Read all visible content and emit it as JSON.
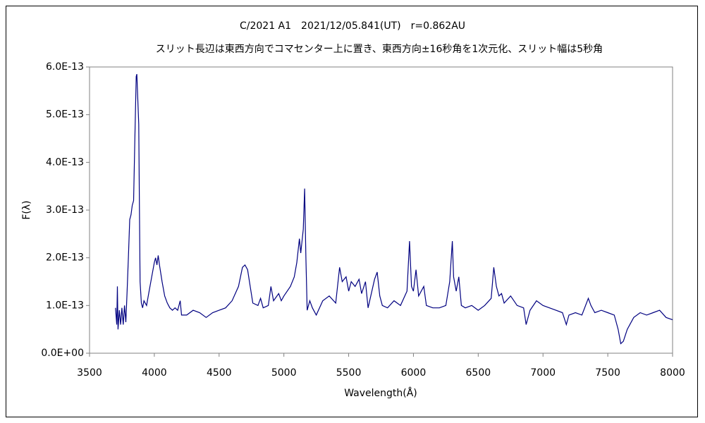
{
  "chart_data": {
    "type": "line",
    "title": "C/2021 A1　2021/12/05.841(UT)　r=0.862AU",
    "subtitle": "スリット長辺は東西方向でコマセンター上に置き、東西方向±16秒角を1次元化、スリット幅は5秒角",
    "xlabel": "Wavelength(Å)",
    "ylabel": "F(λ)",
    "xlim": [
      3500,
      8000
    ],
    "xticks": [
      3500,
      4000,
      4500,
      5000,
      5500,
      6000,
      6500,
      7000,
      7500,
      8000
    ],
    "ylim": [
      0,
      6e-13
    ],
    "yticks": [
      {
        "value": 0,
        "label": "0.0E+00"
      },
      {
        "value": 1e-13,
        "label": "1.0E-13"
      },
      {
        "value": 2e-13,
        "label": "2.0E-13"
      },
      {
        "value": 3e-13,
        "label": "3.0E-13"
      },
      {
        "value": 4e-13,
        "label": "4.0E-13"
      },
      {
        "value": 5e-13,
        "label": "5.0E-13"
      },
      {
        "value": 6e-13,
        "label": "6.0E-13"
      }
    ],
    "grid": false,
    "color": "#000080",
    "x": [
      3700,
      3710,
      3715,
      3720,
      3730,
      3740,
      3750,
      3760,
      3770,
      3780,
      3790,
      3800,
      3810,
      3820,
      3830,
      3840,
      3850,
      3860,
      3865,
      3870,
      3880,
      3885,
      3890,
      3900,
      3910,
      3920,
      3940,
      3960,
      3980,
      4000,
      4010,
      4020,
      4030,
      4040,
      4060,
      4080,
      4100,
      4120,
      4140,
      4160,
      4180,
      4200,
      4210,
      4250,
      4300,
      4350,
      4400,
      4450,
      4500,
      4550,
      4600,
      4650,
      4680,
      4700,
      4720,
      4740,
      4760,
      4800,
      4820,
      4840,
      4880,
      4900,
      4920,
      4960,
      4980,
      5000,
      5050,
      5080,
      5100,
      5120,
      5130,
      5150,
      5160,
      5170,
      5180,
      5200,
      5220,
      5250,
      5300,
      5350,
      5400,
      5430,
      5450,
      5480,
      5500,
      5520,
      5550,
      5580,
      5600,
      5630,
      5650,
      5700,
      5720,
      5740,
      5760,
      5800,
      5850,
      5900,
      5950,
      5970,
      5985,
      6000,
      6020,
      6040,
      6080,
      6100,
      6150,
      6200,
      6250,
      6280,
      6300,
      6310,
      6330,
      6350,
      6370,
      6400,
      6450,
      6500,
      6550,
      6600,
      6620,
      6640,
      6660,
      6680,
      6700,
      6750,
      6800,
      6850,
      6870,
      6900,
      6950,
      7000,
      7050,
      7100,
      7150,
      7180,
      7200,
      7250,
      7300,
      7350,
      7370,
      7400,
      7450,
      7500,
      7550,
      7580,
      7600,
      7620,
      7650,
      7700,
      7750,
      7800,
      7850,
      7900,
      7950,
      8000
    ],
    "values": [
      9.5e-14,
      6e-14,
      1.4e-13,
      5e-14,
      9e-14,
      6e-14,
      9.5e-14,
      6e-14,
      1e-13,
      6.5e-14,
      1.3e-13,
      2e-13,
      2.8e-13,
      2.9e-13,
      3.1e-13,
      3.2e-13,
      4.5e-13,
      5.8e-13,
      5.85e-13,
      5.5e-13,
      4.8e-13,
      3e-13,
      1.5e-13,
      1.05e-13,
      9.5e-14,
      1.1e-13,
      1e-13,
      1.3e-13,
      1.6e-13,
      1.9e-13,
      2e-13,
      1.85e-13,
      2.05e-13,
      1.85e-13,
      1.5e-13,
      1.2e-13,
      1.05e-13,
      9.5e-14,
      9e-14,
      9.5e-14,
      9e-14,
      1.1e-13,
      8e-14,
      8e-14,
      9e-14,
      8.5e-14,
      7.5e-14,
      8.5e-14,
      9e-14,
      9.5e-14,
      1.1e-13,
      1.4e-13,
      1.8e-13,
      1.85e-13,
      1.75e-13,
      1.4e-13,
      1.05e-13,
      1e-13,
      1.15e-13,
      9.5e-14,
      1e-13,
      1.4e-13,
      1.1e-13,
      1.25e-13,
      1.1e-13,
      1.2e-13,
      1.4e-13,
      1.6e-13,
      1.9e-13,
      2.4e-13,
      2.1e-13,
      2.6e-13,
      3.45e-13,
      2e-13,
      9e-14,
      1.1e-13,
      9.5e-14,
      8e-14,
      1.1e-13,
      1.2e-13,
      1.05e-13,
      1.8e-13,
      1.5e-13,
      1.6e-13,
      1.3e-13,
      1.5e-13,
      1.4e-13,
      1.55e-13,
      1.25e-13,
      1.5e-13,
      9.5e-14,
      1.55e-13,
      1.7e-13,
      1.2e-13,
      1e-13,
      9.5e-14,
      1.1e-13,
      1e-13,
      1.3e-13,
      2.35e-13,
      1.4e-13,
      1.3e-13,
      1.75e-13,
      1.2e-13,
      1.4e-13,
      1e-13,
      9.5e-14,
      9.5e-14,
      1e-13,
      1.5e-13,
      2.35e-13,
      1.6e-13,
      1.3e-13,
      1.6e-13,
      1e-13,
      9.5e-14,
      1e-13,
      9e-14,
      1e-13,
      1.15e-13,
      1.8e-13,
      1.4e-13,
      1.2e-13,
      1.25e-13,
      1.05e-13,
      1.2e-13,
      1e-13,
      9.5e-14,
      6e-14,
      9e-14,
      1.1e-13,
      1e-13,
      9.5e-14,
      9e-14,
      8.5e-14,
      6e-14,
      8e-14,
      8.5e-14,
      8e-14,
      1.15e-13,
      1e-13,
      8.5e-14,
      9e-14,
      8.5e-14,
      8e-14,
      5e-14,
      2e-14,
      2.5e-14,
      5e-14,
      7.5e-14,
      8.5e-14,
      8e-14,
      8.5e-14,
      9e-14,
      7.5e-14,
      7e-14
    ]
  }
}
